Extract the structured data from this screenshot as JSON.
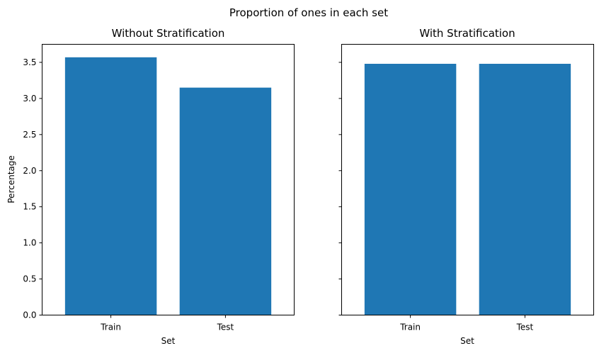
{
  "title": "Proportion of ones in each set",
  "colors": {
    "bar": "#1f77b4"
  },
  "chart_data": [
    {
      "type": "bar",
      "title": "Without Stratification",
      "categories": [
        "Train",
        "Test"
      ],
      "values": [
        3.57,
        3.15
      ],
      "xlabel": "Set",
      "ylabel": "Percentage",
      "ylim": [
        0,
        3.75
      ],
      "yticks": [
        "0.0",
        "0.5",
        "1.0",
        "1.5",
        "2.0",
        "2.5",
        "3.0",
        "3.5"
      ],
      "grid": false
    },
    {
      "type": "bar",
      "title": "With Stratification",
      "categories": [
        "Train",
        "Test"
      ],
      "values": [
        3.48,
        3.48
      ],
      "xlabel": "Set",
      "ylabel": "",
      "ylim": [
        0,
        3.75
      ],
      "yticks": [],
      "grid": false
    }
  ]
}
